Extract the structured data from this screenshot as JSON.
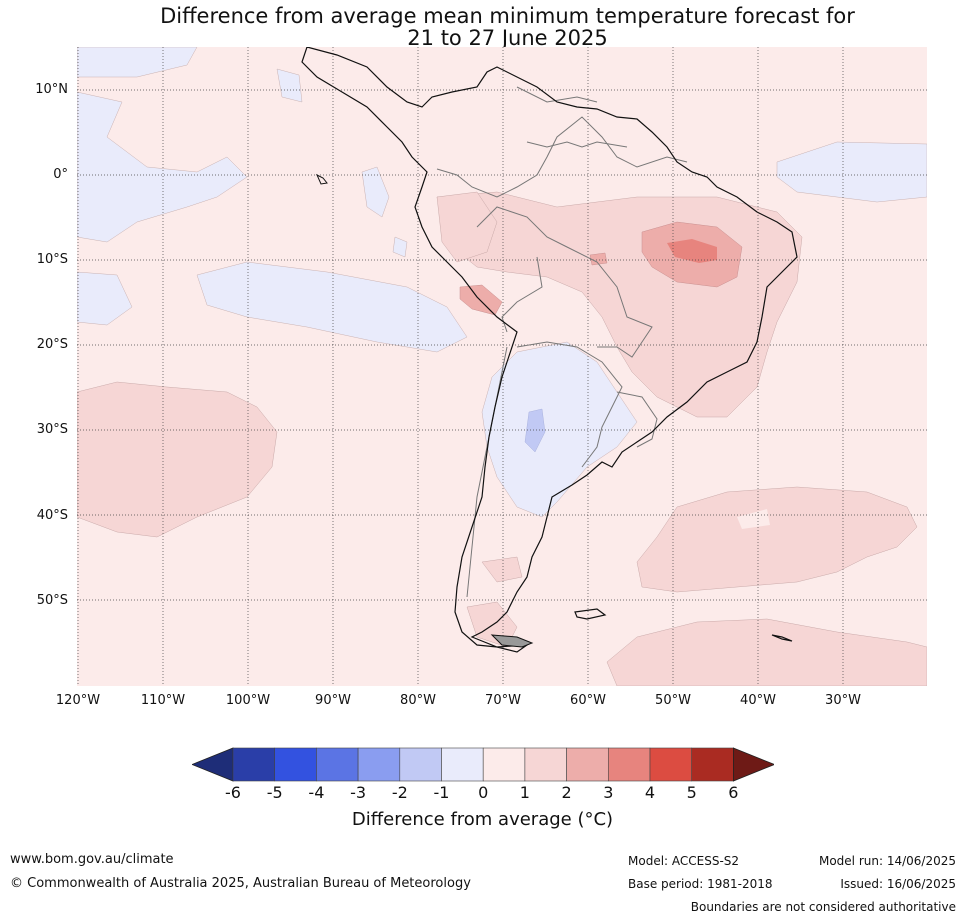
{
  "title": {
    "line1": "Difference from average mean minimum temperature forecast for",
    "line2": "21 to 27 June 2025"
  },
  "lat_labels": [
    "10°N",
    "0°",
    "10°S",
    "20°S",
    "30°S",
    "40°S",
    "50°S"
  ],
  "lon_labels": [
    "120°W",
    "110°W",
    "100°W",
    "90°W",
    "80°W",
    "70°W",
    "60°W",
    "50°W",
    "40°W",
    "30°W"
  ],
  "colorbar": {
    "ticks": [
      "-6",
      "-5",
      "-4",
      "-3",
      "-2",
      "-1",
      "0",
      "1",
      "2",
      "3",
      "4",
      "5",
      "6"
    ],
    "colors": [
      "#2a3ea8",
      "#3352e0",
      "#5b74e4",
      "#8a9df0",
      "#c1c9f4",
      "#e9ebfb",
      "#fcebea",
      "#f6d6d5",
      "#edadaa",
      "#e7847e",
      "#dc4c41",
      "#aa2b22"
    ],
    "under_color": "#1e2d78",
    "over_color": "#6e1a16",
    "label": "Difference from average (°C)"
  },
  "legend_colors": {
    "neutral_warm": "#fcebea",
    "cool": "#e9ebfb",
    "warm1": "#f6d6d5",
    "warm2": "#edadaa",
    "warm3": "#e7847e",
    "cool2": "#c1c9f4"
  },
  "footer": {
    "url": "www.bom.gov.au/climate",
    "copyright": "© Commonwealth of Australia 2025, Australian Bureau of Meteorology",
    "model": "Model: ACCESS-S2",
    "base_period": "Base period: 1981-2018",
    "model_run": "Model run: 14/06/2025",
    "issued": "Issued: 16/06/2025",
    "disclaimer": "Boundaries are not considered authoritative"
  }
}
